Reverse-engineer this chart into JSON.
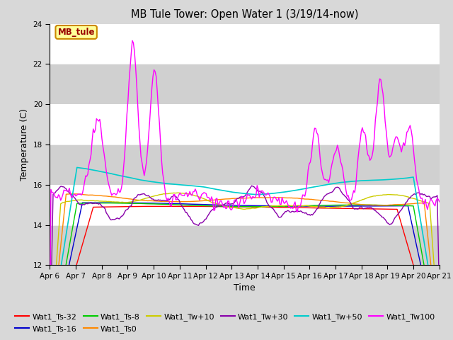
{
  "title": "MB Tule Tower: Open Water 1 (3/19/14-now)",
  "xlabel": "Time",
  "ylabel": "Temperature (C)",
  "ylim": [
    12,
    24
  ],
  "yticks": [
    12,
    14,
    16,
    18,
    20,
    22,
    24
  ],
  "x_labels": [
    "Apr 6",
    "Apr 7",
    "Apr 8",
    "Apr 9",
    "Apr 10",
    "Apr 11",
    "Apr 12",
    "Apr 13",
    "Apr 14",
    "Apr 15",
    "Apr 16",
    "Apr 17",
    "Apr 18",
    "Apr 19",
    "Apr 20",
    "Apr 21"
  ],
  "legend_box_label": "MB_tule",
  "series": {
    "Wat1_Ts-32": {
      "color": "#ff0000"
    },
    "Wat1_Ts-16": {
      "color": "#0000cc"
    },
    "Wat1_Ts-8": {
      "color": "#00cc00"
    },
    "Wat1_Ts0": {
      "color": "#ff8800"
    },
    "Wat1_Tw+10": {
      "color": "#cccc00"
    },
    "Wat1_Tw+30": {
      "color": "#8800aa"
    },
    "Wat1_Tw+50": {
      "color": "#00cccc"
    },
    "Wat1_Tw100": {
      "color": "#ff00ff"
    }
  },
  "background_color": "#d8d8d8",
  "plot_bg_color": "#ffffff",
  "gray_band_color": "#d0d0d0"
}
